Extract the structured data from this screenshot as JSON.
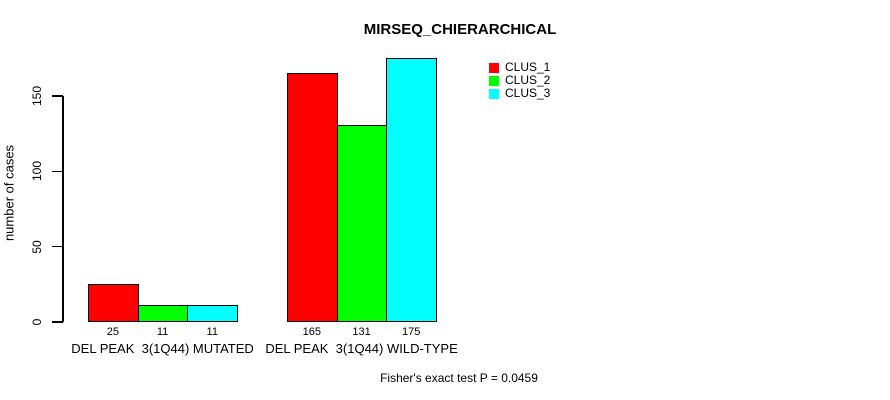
{
  "title": "MIRSEQ_CHIERARCHICAL",
  "ylabel": "number of cases",
  "footer": "Fisher's exact test P = 0.0459",
  "legend": [
    {
      "label": "CLUS_1",
      "color": "#ff0000"
    },
    {
      "label": "CLUS_2",
      "color": "#00ff00"
    },
    {
      "label": "CLUS_3",
      "color": "#00ffff"
    }
  ],
  "chart_data": {
    "type": "bar",
    "title": "MIRSEQ_CHIERARCHICAL",
    "xlabel": "",
    "ylabel": "number of cases",
    "categories": [
      "DEL PEAK  3(1Q44) MUTATED",
      "DEL PEAK  3(1Q44) WILD-TYPE"
    ],
    "series": [
      {
        "name": "CLUS_1",
        "color": "#ff0000",
        "values": [
          25,
          165
        ]
      },
      {
        "name": "CLUS_2",
        "color": "#00ff00",
        "values": [
          11,
          131
        ]
      },
      {
        "name": "CLUS_3",
        "color": "#00ffff",
        "values": [
          11,
          175
        ]
      }
    ],
    "bar_labels_shown": true,
    "yticks": [
      0,
      50,
      100,
      150
    ],
    "ylim": [
      0,
      175
    ],
    "grid": false,
    "legend_position": "top-right",
    "annotation": "Fisher's exact test P = 0.0459"
  }
}
